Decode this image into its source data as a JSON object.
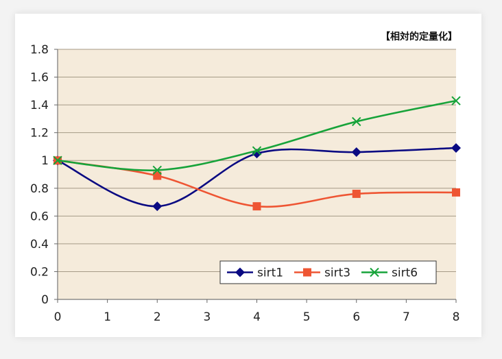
{
  "chart_data": {
    "type": "line",
    "unit_label": "【相対的定量化】",
    "x_ticks": [
      "0",
      "1",
      "2",
      "3",
      "4",
      "5",
      "6",
      "7",
      "8"
    ],
    "y_ticks": [
      "0",
      "0.2",
      "0.4",
      "0.6",
      "0.8",
      "1",
      "1.2",
      "1.4",
      "1.6",
      "1.8"
    ],
    "xlim": [
      0,
      8
    ],
    "ylim": [
      0,
      1.8
    ],
    "grid": true,
    "legend_position": "bottom-right",
    "plot_background": "#f5ebdb",
    "series": [
      {
        "name": "sirt1",
        "color": "#0a0a82",
        "marker": "diamond",
        "points": [
          [
            0,
            1.0
          ],
          [
            2,
            0.67
          ],
          [
            4,
            1.05
          ],
          [
            6,
            1.06
          ],
          [
            8,
            1.09
          ]
        ]
      },
      {
        "name": "sirt3",
        "color": "#ee5533",
        "marker": "square",
        "points": [
          [
            0,
            1.0
          ],
          [
            2,
            0.89
          ],
          [
            4,
            0.67
          ],
          [
            6,
            0.76
          ],
          [
            8,
            0.77
          ]
        ]
      },
      {
        "name": "sirt6",
        "color": "#17a33a",
        "marker": "x",
        "points": [
          [
            0,
            1.0
          ],
          [
            2,
            0.93
          ],
          [
            4,
            1.07
          ],
          [
            6,
            1.28
          ],
          [
            8,
            1.43
          ]
        ]
      }
    ]
  }
}
